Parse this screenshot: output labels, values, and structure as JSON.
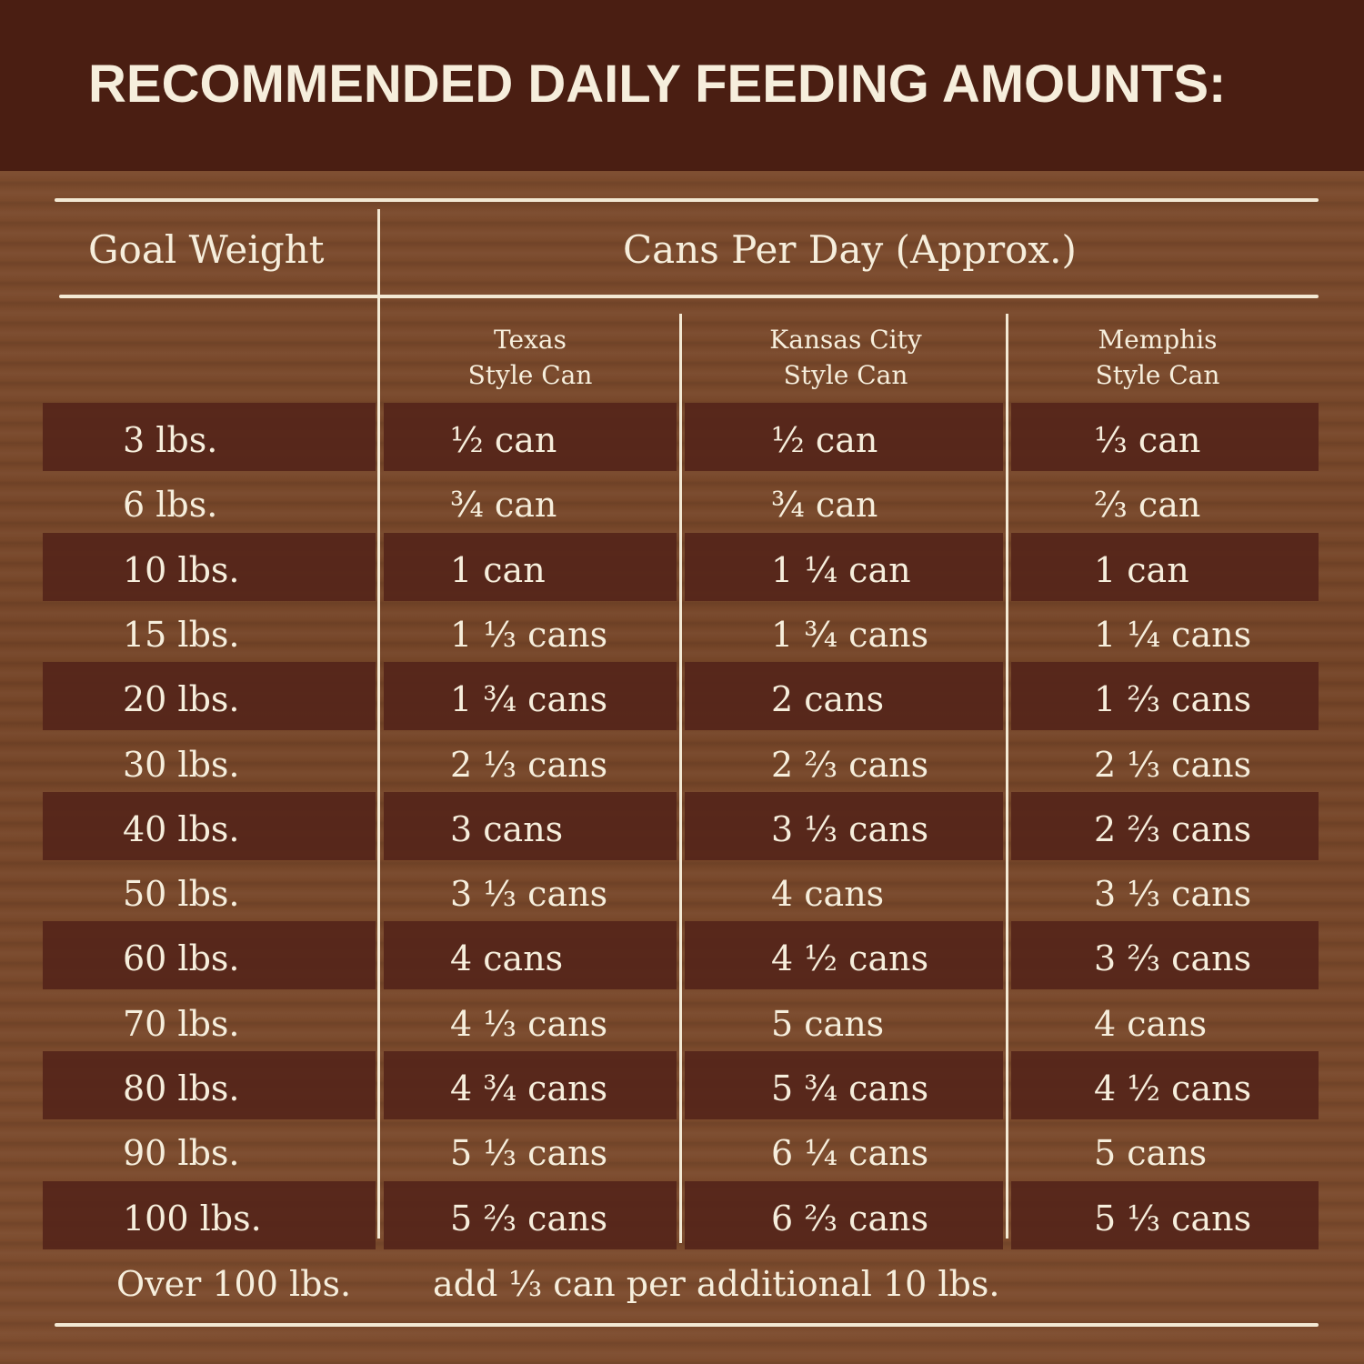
{
  "title": "RECOMMENDED DAILY FEEDING AMOUNTS:",
  "headers": {
    "goal_weight": "Goal Weight",
    "cans_per_day": "Cans Per Day (Approx.)",
    "columns": [
      {
        "line1": "Texas",
        "line2": "Style Can"
      },
      {
        "line1": "Kansas City",
        "line2": "Style Can"
      },
      {
        "line1": "Memphis",
        "line2": "Style Can"
      }
    ]
  },
  "rows": [
    {
      "weight": "3 lbs.",
      "texas": "½ can",
      "kc": "½ can",
      "memphis": "⅓ can"
    },
    {
      "weight": "6 lbs.",
      "texas": "¾ can",
      "kc": "¾ can",
      "memphis": "⅔ can"
    },
    {
      "weight": "10 lbs.",
      "texas": "1 can",
      "kc": "1 ¼ can",
      "memphis": "1 can"
    },
    {
      "weight": "15 lbs.",
      "texas": "1 ⅓ cans",
      "kc": "1 ¾ cans",
      "memphis": "1 ¼ cans"
    },
    {
      "weight": "20 lbs.",
      "texas": "1 ¾ cans",
      "kc": "2 cans",
      "memphis": "1 ⅔ cans"
    },
    {
      "weight": "30 lbs.",
      "texas": "2 ⅓ cans",
      "kc": "2 ⅔ cans",
      "memphis": "2 ⅓ cans"
    },
    {
      "weight": "40 lbs.",
      "texas": "3 cans",
      "kc": "3 ⅓ cans",
      "memphis": "2 ⅔ cans"
    },
    {
      "weight": "50 lbs.",
      "texas": "3 ⅓ cans",
      "kc": "4 cans",
      "memphis": "3 ⅓ cans"
    },
    {
      "weight": "60 lbs.",
      "texas": "4 cans",
      "kc": "4 ½ cans",
      "memphis": "3 ⅔ cans"
    },
    {
      "weight": "70 lbs.",
      "texas": "4 ⅓ cans",
      "kc": "5 cans",
      "memphis": "4 cans"
    },
    {
      "weight": "80 lbs.",
      "texas": "4 ¾ cans",
      "kc": "5 ¾ cans",
      "memphis": "4 ½ cans"
    },
    {
      "weight": "90 lbs.",
      "texas": "5 ⅓ cans",
      "kc": "6 ¼ cans",
      "memphis": "5 cans"
    },
    {
      "weight": "100 lbs.",
      "texas": "5 ⅔ cans",
      "kc": "6 ⅔ cans",
      "memphis": "5 ⅓ cans"
    }
  ],
  "footer": {
    "weight": "Over 100 lbs.",
    "note": "add ⅓ can per additional 10 lbs."
  },
  "colors": {
    "header": "#4a1e12",
    "wood": "#7b4a2c",
    "stripe": "#55251a",
    "text": "#f6eedc"
  }
}
